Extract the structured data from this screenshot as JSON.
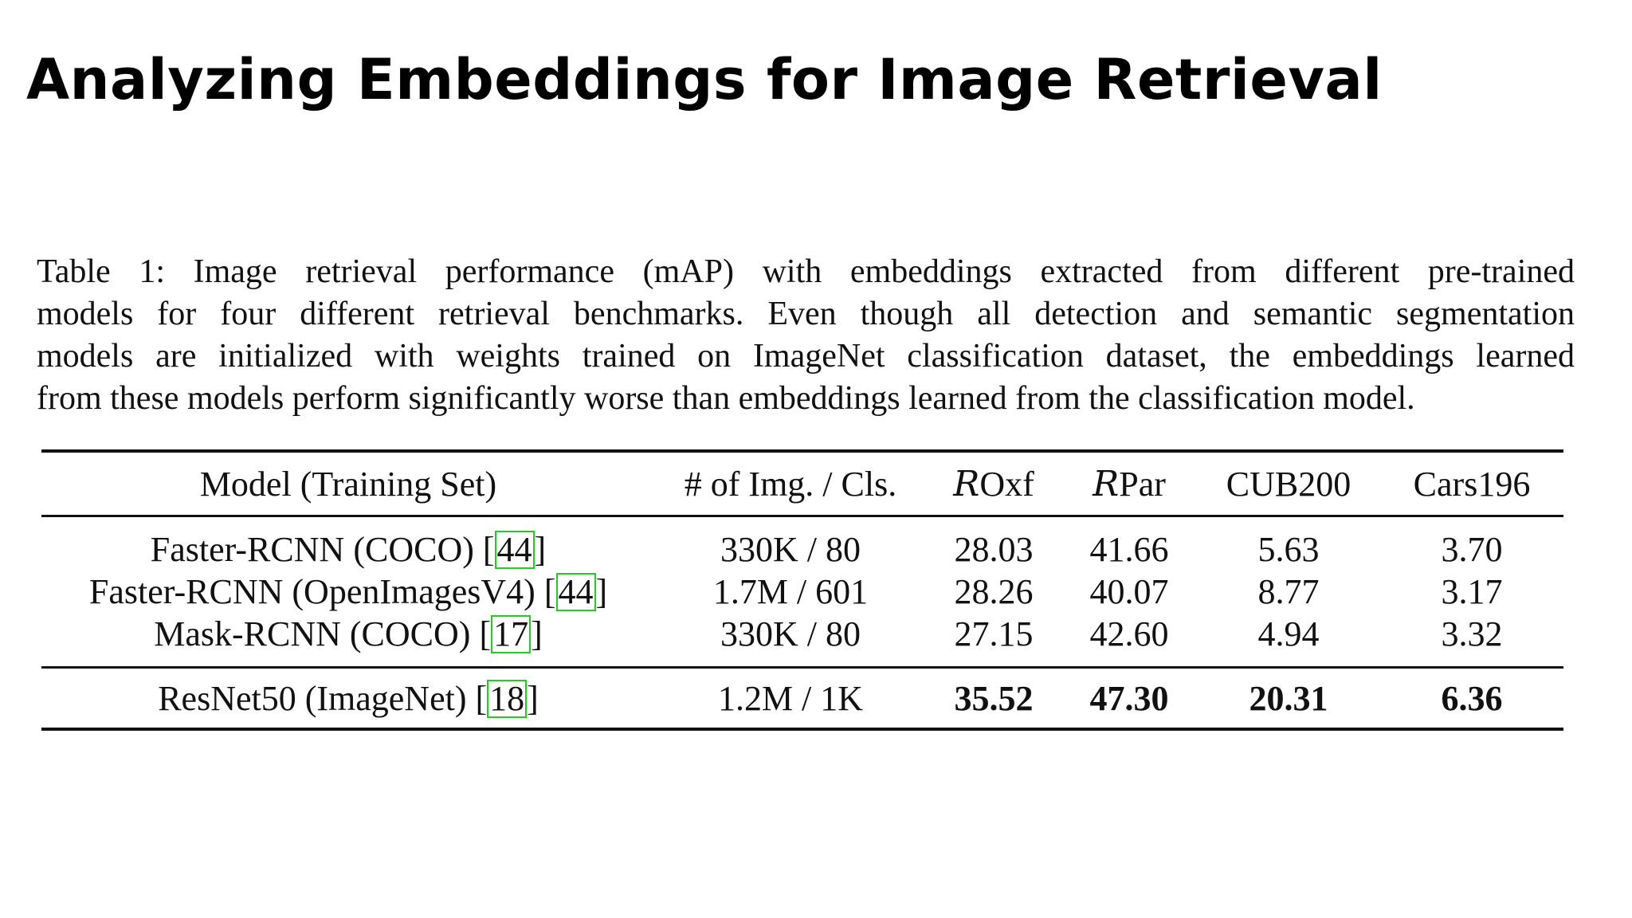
{
  "title": "Analyzing Embeddings for Image Retrieval",
  "caption": {
    "lines": [
      "Table 1: Image retrieval performance (mAP) with embeddings extracted from different pre-trained",
      "models for four different retrieval benchmarks. Even though all detection and semantic segmentation",
      "models are initialized with weights trained on ImageNet classification dataset, the embeddings learned",
      "from these models perform significantly worse than embeddings learned from the classification model."
    ]
  },
  "table": {
    "headers": {
      "model": "Model (Training Set)",
      "img_cls": "# of Img. / Cls.",
      "roxf_prefix": "R",
      "roxf": "Oxf",
      "rpar_prefix": "R",
      "rpar": "Par",
      "cub": "CUB200",
      "cars": "Cars196"
    },
    "rows": [
      {
        "model": "Faster-RCNN (COCO) ",
        "cite": "44",
        "img_cls": "330K / 80",
        "roxf": "28.03",
        "rpar": "41.66",
        "cub": "5.63",
        "cars": "3.70"
      },
      {
        "model": "Faster-RCNN (OpenImagesV4) ",
        "cite": "44",
        "img_cls": "1.7M / 601",
        "roxf": "28.26",
        "rpar": "40.07",
        "cub": "8.77",
        "cars": "3.17"
      },
      {
        "model": "Mask-RCNN (COCO) ",
        "cite": "17",
        "img_cls": "330K / 80",
        "roxf": "27.15",
        "rpar": "42.60",
        "cub": "4.94",
        "cars": "3.32"
      }
    ],
    "best_row": {
      "model": "ResNet50 (ImageNet) ",
      "cite": "18",
      "img_cls": "1.2M / 1K",
      "roxf": "35.52",
      "rpar": "47.30",
      "cub": "20.31",
      "cars": "6.36"
    }
  }
}
